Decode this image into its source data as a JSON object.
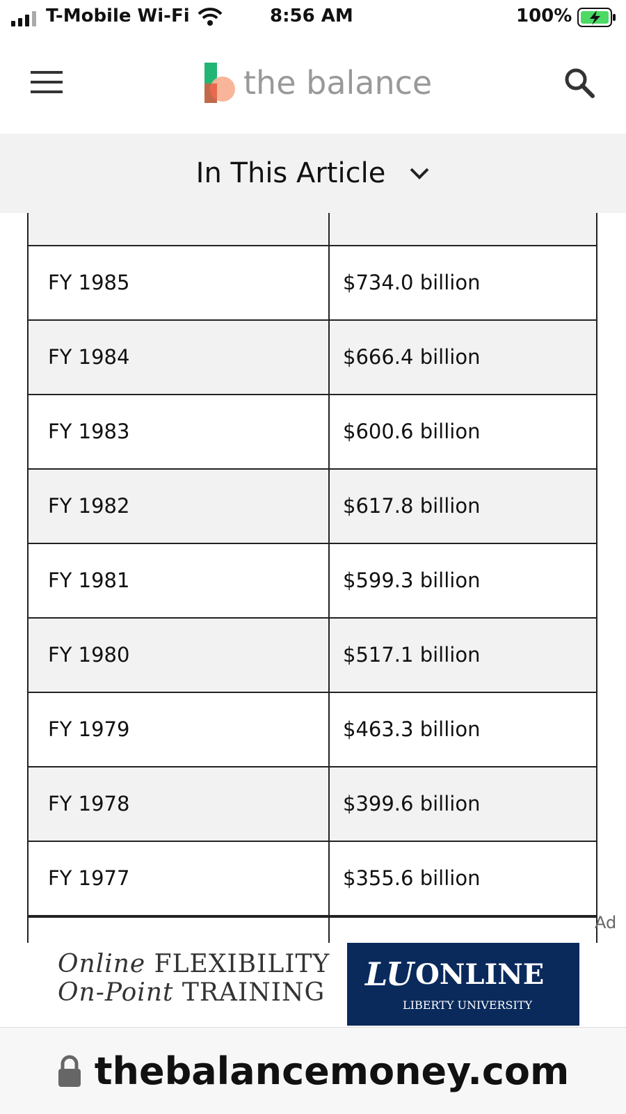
{
  "status_bar": {
    "carrier": "T-Mobile Wi-Fi",
    "time": "8:56 AM",
    "battery": "100%"
  },
  "header": {
    "logo": "the balance"
  },
  "toc": {
    "label": "In This Article"
  },
  "table": {
    "rows": [
      [
        "FY 1985",
        "$734.0 billion"
      ],
      [
        "FY 1984",
        "$666.4 billion"
      ],
      [
        "FY 1983",
        "$600.6 billion"
      ],
      [
        "FY 1982",
        "$617.8 billion"
      ],
      [
        "FY 1981",
        "$599.3 billion"
      ],
      [
        "FY 1980",
        "$517.1 billion"
      ],
      [
        "FY 1979",
        "$463.3 billion"
      ],
      [
        "FY 1978",
        "$399.6 billion"
      ],
      [
        "FY 1977",
        "$355.6 billion"
      ]
    ]
  },
  "ad": {
    "label": "Ad",
    "line1_a": "Online",
    "line1_b": "FLEXIBILITY",
    "line2_a": "On-Point",
    "line2_b": "TRAINING",
    "brand": "ONLINE",
    "brand_sub": "LIBERTY UNIVERSITY"
  },
  "url_bar": {
    "domain": "thebalancemoney.com"
  }
}
